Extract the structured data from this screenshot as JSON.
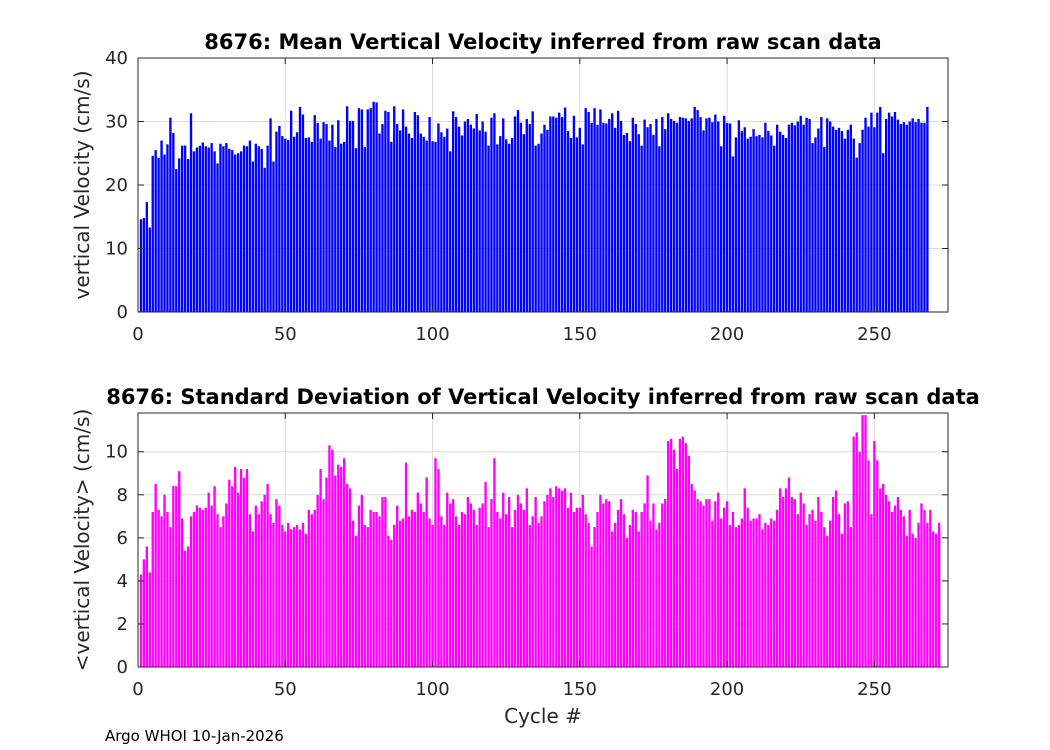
{
  "footer_text": "Argo WHOI 10-Jan-2026",
  "chart_data": [
    {
      "type": "bar",
      "title": "8676: Mean Vertical Velocity inferred from raw scan data",
      "xlabel": "",
      "ylabel": "vertical Velocity (cm/s)",
      "xlim": [
        0,
        275
      ],
      "ylim": [
        0,
        40
      ],
      "xticks": [
        0,
        50,
        100,
        150,
        200,
        250
      ],
      "yticks": [
        0,
        10,
        20,
        30,
        40
      ],
      "bar_color": "#0000ff",
      "x_start": 1,
      "values": [
        14.6,
        14.8,
        17.3,
        13.3,
        24.6,
        25.5,
        24.3,
        27.0,
        24.8,
        26.4,
        30.6,
        28.2,
        22.5,
        24.2,
        26.2,
        26.2,
        24.1,
        31.3,
        25.3,
        25.9,
        26.2,
        26.7,
        26.1,
        25.9,
        26.6,
        25.3,
        23.4,
        26.5,
        26.1,
        26.6,
        25.7,
        25.5,
        24.8,
        25.0,
        25.3,
        26.2,
        26.1,
        27.0,
        23.7,
        26.5,
        26.1,
        25.7,
        22.7,
        26.2,
        30.5,
        23.7,
        28.4,
        29.3,
        27.7,
        27.3,
        27.1,
        31.7,
        27.6,
        28.3,
        32.3,
        31.1,
        27.4,
        27.5,
        26.8,
        31.0,
        29.8,
        27.3,
        29.9,
        29.6,
        27.0,
        29.5,
        26.0,
        30.2,
        26.5,
        26.8,
        32.4,
        30.1,
        30.1,
        25.8,
        32.1,
        31.9,
        26.0,
        31.9,
        32.1,
        33.1,
        33.0,
        28.1,
        29.6,
        31.7,
        31.5,
        26.8,
        32.4,
        29.6,
        28.6,
        31.9,
        29.2,
        28.1,
        27.4,
        31.5,
        31.0,
        28.1,
        27.6,
        27.0,
        30.7,
        26.9,
        26.8,
        29.7,
        28.3,
        27.6,
        28.9,
        25.3,
        31.6,
        30.7,
        29.2,
        27.8,
        30.0,
        30.4,
        29.5,
        28.9,
        31.2,
        28.6,
        30.0,
        28.4,
        26.2,
        30.6,
        31.3,
        26.4,
        27.7,
        30.5,
        27.2,
        26.5,
        27.4,
        30.8,
        31.8,
        29.8,
        28.0,
        30.4,
        29.6,
        31.6,
        26.2,
        26.5,
        28.1,
        29.5,
        28.7,
        30.8,
        30.8,
        30.6,
        31.4,
        30.7,
        32.2,
        28.5,
        27.4,
        30.9,
        27.5,
        29.0,
        26.4,
        32.1,
        31.5,
        29.8,
        32.1,
        29.5,
        31.9,
        29.8,
        29.7,
        30.4,
        31.3,
        29.0,
        31.7,
        30.1,
        27.9,
        28.2,
        26.9,
        30.6,
        29.6,
        28.0,
        26.2,
        30.3,
        29.1,
        29.6,
        27.9,
        30.4,
        26.1,
        30.7,
        28.8,
        31.3,
        30.4,
        30.1,
        29.8,
        30.7,
        30.6,
        30.5,
        30.1,
        30.5,
        32.3,
        31.8,
        30.7,
        28.6,
        30.5,
        30.6,
        29.9,
        31.1,
        30.0,
        26.1,
        30.9,
        29.8,
        29.7,
        24.5,
        27.5,
        30.2,
        28.5,
        29.1,
        27.3,
        27.6,
        28.8,
        27.7,
        27.9,
        27.5,
        29.8,
        28.5,
        27.8,
        26.2,
        29.5,
        28.4,
        27.9,
        27.4,
        29.5,
        29.8,
        29.4,
        30.0,
        30.9,
        29.5,
        30.6,
        30.4,
        26.6,
        27.5,
        28.9,
        30.7,
        26.0,
        30.5,
        30.0,
        29.2,
        28.7,
        29.0,
        28.5,
        27.3,
        28.7,
        29.5,
        27.3,
        24.3,
        26.6,
        28.7,
        30.6,
        29.2,
        31.4,
        29.1,
        31.4,
        32.3,
        25.0,
        30.4,
        31.4,
        30.8,
        31.5,
        30.3,
        29.6,
        29.9,
        29.5,
        30.0,
        30.5,
        29.9,
        30.4,
        29.8,
        29.8,
        32.3
      ]
    },
    {
      "type": "bar",
      "title": "8676: Standard Deviation of Vertical Velocity inferred from raw scan data",
      "xlabel": "Cycle #",
      "ylabel": "<vertical Velocity> (cm/s)",
      "xlim": [
        0,
        275
      ],
      "ylim": [
        0,
        11.8
      ],
      "xticks": [
        0,
        50,
        100,
        150,
        200,
        250
      ],
      "yticks": [
        0,
        2,
        4,
        6,
        8,
        10
      ],
      "bar_color": "#ff00ff",
      "x_start": 1,
      "values": [
        4.3,
        5.0,
        5.6,
        4.4,
        7.2,
        8.5,
        7.3,
        7.0,
        8.0,
        7.2,
        6.5,
        8.4,
        8.4,
        9.1,
        6.9,
        5.4,
        5.6,
        7.0,
        7.2,
        7.5,
        7.4,
        7.3,
        7.4,
        8.1,
        7.5,
        8.4,
        7.1,
        6.5,
        7.0,
        7.6,
        8.7,
        8.4,
        9.3,
        8.1,
        9.2,
        8.8,
        9.2,
        7.1,
        6.3,
        7.5,
        7.1,
        7.7,
        8.0,
        8.5,
        7.1,
        6.7,
        7.8,
        7.5,
        6.6,
        6.3,
        6.7,
        6.4,
        6.5,
        6.6,
        6.4,
        6.7,
        6.2,
        7.3,
        7.1,
        7.3,
        8.0,
        9.2,
        7.8,
        8.8,
        10.3,
        10.1,
        8.9,
        9.4,
        9.3,
        9.7,
        8.5,
        8.3,
        6.8,
        6.1,
        7.5,
        8.0,
        6.6,
        6.5,
        7.3,
        7.2,
        7.2,
        7.0,
        7.9,
        7.9,
        6.1,
        5.9,
        6.6,
        7.5,
        6.8,
        6.9,
        9.5,
        7.0,
        7.3,
        7.2,
        8.1,
        7.6,
        7.2,
        8.8,
        6.9,
        6.6,
        9.7,
        9.2,
        7.0,
        6.6,
        8.1,
        7.6,
        7.8,
        7.0,
        6.6,
        7.2,
        7.1,
        7.9,
        7.6,
        7.3,
        6.6,
        7.4,
        7.6,
        8.6,
        6.5,
        7.8,
        9.7,
        7.2,
        6.9,
        8.1,
        7.1,
        7.9,
        6.5,
        7.3,
        8.0,
        7.6,
        7.3,
        8.3,
        6.6,
        7.0,
        7.9,
        6.7,
        7.0,
        7.7,
        8.0,
        8.3,
        7.9,
        8.4,
        8.3,
        8.2,
        8.3,
        7.4,
        8.1,
        7.2,
        7.4,
        7.4,
        8.0,
        7.1,
        6.7,
        5.6,
        6.5,
        7.2,
        8.0,
        7.6,
        7.8,
        7.7,
        6.3,
        6.7,
        7.3,
        7.8,
        7.1,
        6.0,
        6.6,
        7.3,
        7.2,
        6.3,
        7.2,
        7.6,
        8.9,
        6.8,
        7.6,
        6.4,
        6.7,
        7.6,
        7.8,
        10.5,
        10.6,
        10.1,
        9.2,
        10.6,
        10.7,
        10.4,
        9.8,
        8.5,
        8.2,
        7.8,
        7.7,
        7.5,
        7.8,
        7.8,
        6.8,
        7.7,
        8.1,
        6.9,
        7.4,
        7.7,
        6.6,
        7.2,
        6.5,
        6.6,
        6.9,
        8.3,
        7.4,
        6.8,
        6.9,
        6.9,
        7.1,
        6.4,
        6.7,
        6.6,
        6.9,
        6.8,
        7.3,
        8.3,
        7.9,
        8.3,
        8.8,
        7.9,
        7.8,
        7.1,
        8.1,
        7.6,
        6.6,
        7.1,
        7.3,
        6.8,
        7.9,
        7.2,
        6.5,
        6.1,
        6.8,
        7.9,
        8.2,
        7.1,
        6.2,
        7.6,
        7.7,
        6.5,
        10.7,
        10.9,
        10.0,
        11.7,
        11.7,
        9.6,
        7.1,
        10.5,
        9.6,
        8.3,
        8.5,
        8.0,
        7.7,
        7.2,
        7.5,
        7.9,
        7.3,
        7.0,
        6.1,
        7.3,
        6.2,
        6.0,
        6.7,
        7.6,
        7.3,
        6.7,
        7.3,
        6.3,
        6.2,
        6.7
      ]
    }
  ]
}
